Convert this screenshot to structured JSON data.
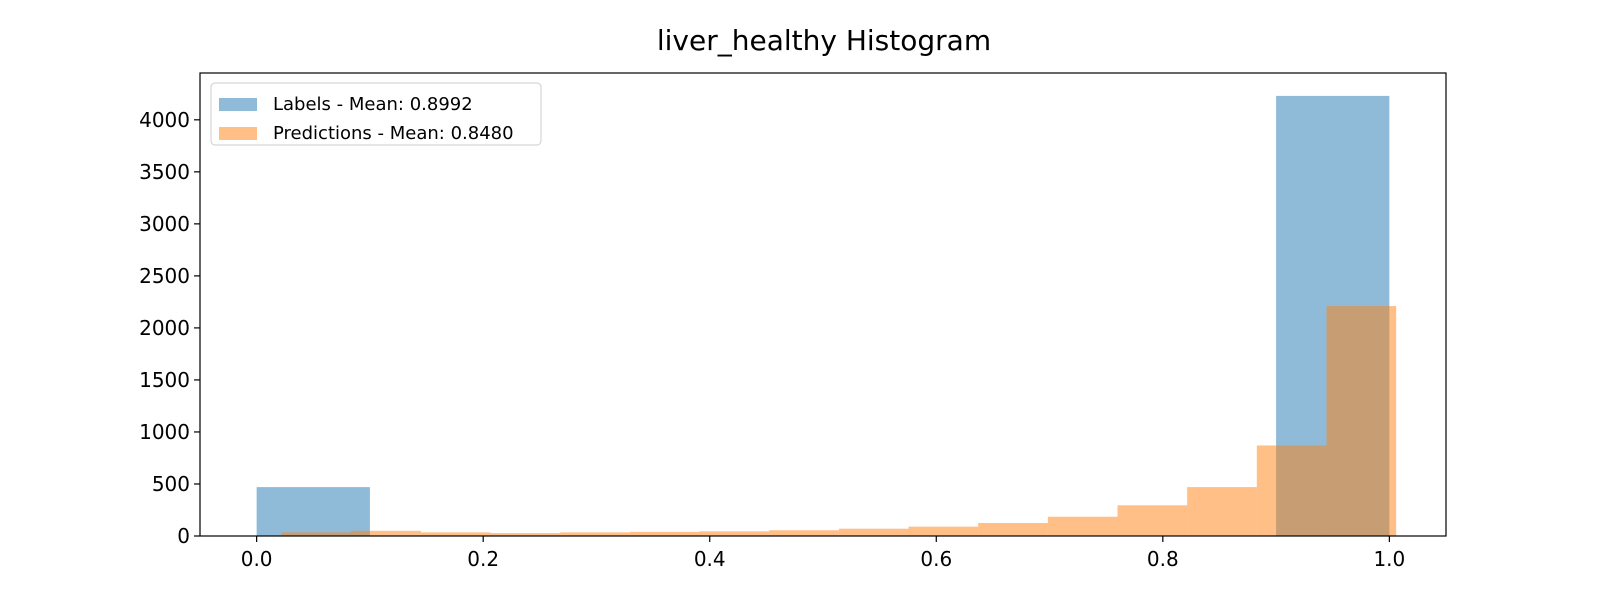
{
  "chart_data": {
    "type": "bar",
    "title": "liver_healthy Histogram",
    "xlabel": "",
    "ylabel": "",
    "xlim": [
      -0.05,
      1.05
    ],
    "ylim": [
      0,
      4450
    ],
    "x_ticks": [
      "0.0",
      "0.2",
      "0.4",
      "0.6",
      "0.8",
      "1.0"
    ],
    "y_ticks": [
      "0",
      "500",
      "1000",
      "1500",
      "2000",
      "2500",
      "3000",
      "3500",
      "4000"
    ],
    "grid": false,
    "legend_position": "top-left",
    "series": [
      {
        "name": "Labels - Mean: 0.8992",
        "color": "#1f77b4",
        "opacity": 0.5,
        "bins": [
          {
            "x0": 0.0,
            "x1": 0.1,
            "count": 470
          },
          {
            "x0": 0.9,
            "x1": 1.0,
            "count": 4230
          }
        ]
      },
      {
        "name": "Predictions - Mean: 0.8480",
        "color": "#ff7f0e",
        "opacity": 0.5,
        "bins": [
          {
            "x0": 0.022,
            "x1": 0.0835,
            "count": 35
          },
          {
            "x0": 0.0835,
            "x1": 0.145,
            "count": 50
          },
          {
            "x0": 0.145,
            "x1": 0.2065,
            "count": 35
          },
          {
            "x0": 0.2065,
            "x1": 0.268,
            "count": 28
          },
          {
            "x0": 0.268,
            "x1": 0.3295,
            "count": 35
          },
          {
            "x0": 0.3295,
            "x1": 0.391,
            "count": 40
          },
          {
            "x0": 0.391,
            "x1": 0.4525,
            "count": 45
          },
          {
            "x0": 0.4525,
            "x1": 0.514,
            "count": 55
          },
          {
            "x0": 0.514,
            "x1": 0.5755,
            "count": 70
          },
          {
            "x0": 0.5755,
            "x1": 0.637,
            "count": 90
          },
          {
            "x0": 0.637,
            "x1": 0.6985,
            "count": 125
          },
          {
            "x0": 0.6985,
            "x1": 0.76,
            "count": 185
          },
          {
            "x0": 0.76,
            "x1": 0.8215,
            "count": 295
          },
          {
            "x0": 0.8215,
            "x1": 0.883,
            "count": 470
          },
          {
            "x0": 0.883,
            "x1": 0.9445,
            "count": 870
          },
          {
            "x0": 0.9445,
            "x1": 1.006,
            "count": 2210
          }
        ]
      }
    ]
  }
}
